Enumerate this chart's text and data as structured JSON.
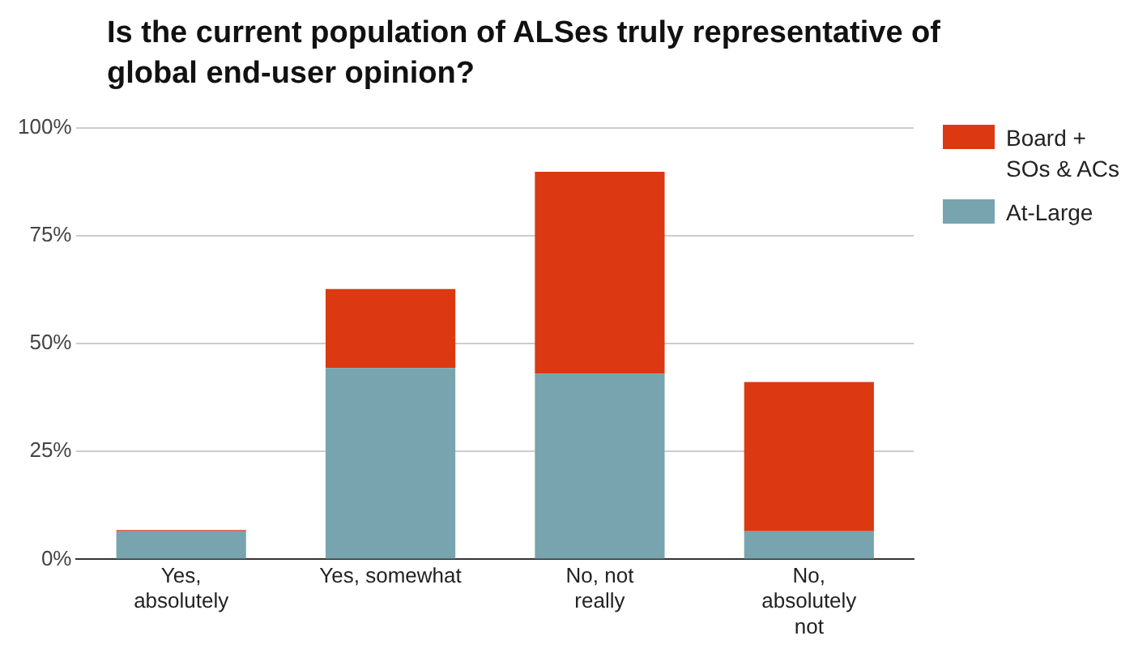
{
  "chart_data": {
    "type": "bar",
    "title": "Is the current population of ALSes truly representative of global end-user opinion?",
    "categories": [
      "Yes, absolutely",
      "Yes, somewhat",
      "No, not really",
      "No, absolutely not"
    ],
    "series": [
      {
        "name": "At-Large",
        "color": "#77a4ae",
        "values": [
          6.5,
          44.3,
          43.0,
          6.5
        ]
      },
      {
        "name": "Board + SOs & ACs",
        "color": "#dc3912",
        "values": [
          0.3,
          18.3,
          46.8,
          34.6
        ]
      }
    ],
    "stacked": true,
    "ylim": [
      0,
      100
    ],
    "yticks": [
      {
        "value": 0,
        "label": "0%"
      },
      {
        "value": 25,
        "label": "25%"
      },
      {
        "value": 50,
        "label": "50%"
      },
      {
        "value": 75,
        "label": "75%"
      },
      {
        "value": 100,
        "label": "100%"
      }
    ],
    "grid": "y",
    "legend": "top right"
  }
}
